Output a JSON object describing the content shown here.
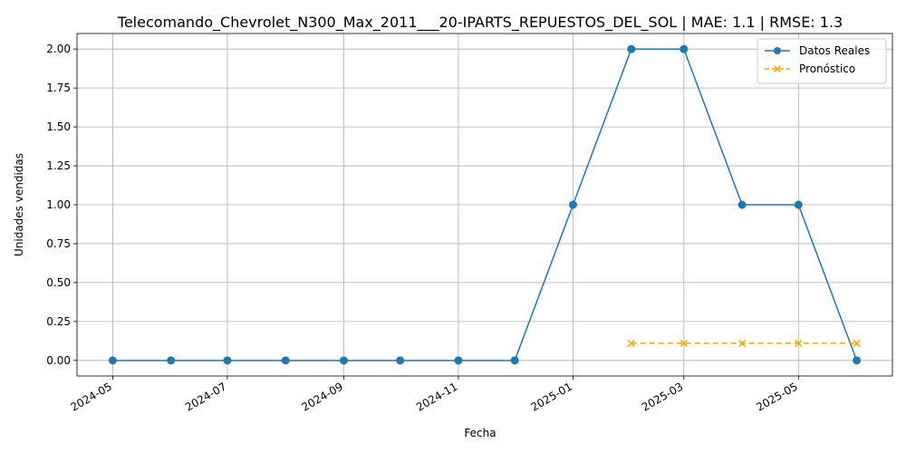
{
  "chart_data": {
    "type": "line",
    "title": "Telecomando_Chevrolet_N300_Max_2011___20-IPARTS_REPUESTOS_DEL_SOL | MAE: 1.1 | RMSE: 1.3",
    "xlabel": "Fecha",
    "ylabel": "Unidades vendidas",
    "grid": true,
    "legend_position": "top-right",
    "x_ticks": [
      "2024-05",
      "2024-07",
      "2024-09",
      "2024-11",
      "2025-01",
      "2025-03",
      "2025-05"
    ],
    "y_ticks": [
      "0.00",
      "0.25",
      "0.50",
      "0.75",
      "1.00",
      "1.25",
      "1.50",
      "1.75",
      "2.00"
    ],
    "ylim": [
      -0.1,
      2.1
    ],
    "xlim": [
      "2024-04-12",
      "2025-06-20"
    ],
    "series": [
      {
        "name": "Datos Reales",
        "color": "#1f77b4",
        "marker": "circle",
        "linestyle": "solid",
        "x": [
          "2024-05-01",
          "2024-06-01",
          "2024-07-01",
          "2024-08-01",
          "2024-09-01",
          "2024-10-01",
          "2024-11-01",
          "2024-12-01",
          "2025-01-01",
          "2025-02-01",
          "2025-03-01",
          "2025-04-01",
          "2025-05-01",
          "2025-06-01"
        ],
        "values": [
          0,
          0,
          0,
          0,
          0,
          0,
          0,
          0,
          1,
          2,
          2,
          1,
          1,
          0
        ]
      },
      {
        "name": "Pronóstico",
        "color": "#ffa500",
        "marker": "x",
        "linestyle": "dashed",
        "x": [
          "2025-02-01",
          "2025-03-01",
          "2025-04-01",
          "2025-05-01",
          "2025-06-01"
        ],
        "values": [
          0.11,
          0.11,
          0.11,
          0.11,
          0.11
        ]
      }
    ]
  }
}
